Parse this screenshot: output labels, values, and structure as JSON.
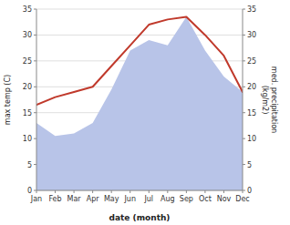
{
  "chart_data": {
    "type": "line",
    "xlabel": "date (month)",
    "ylabel": "max temp (C)",
    "y2label": "med. precipitation\n(kg/m2)",
    "categories": [
      "Jan",
      "Feb",
      "Mar",
      "Apr",
      "May",
      "Jun",
      "Jul",
      "Aug",
      "Sep",
      "Oct",
      "Nov",
      "Dec"
    ],
    "series": [
      {
        "type": "area",
        "axis": "y2",
        "color": "#b8c4e8",
        "values": [
          13.0,
          10.5,
          11.0,
          13.0,
          19.5,
          27.0,
          29.0,
          28.0,
          33.5,
          27.0,
          22.0,
          19.0
        ]
      },
      {
        "type": "line",
        "color": "#c0392b",
        "values": [
          16.5,
          18.0,
          19.0,
          20.0,
          24.0,
          28.0,
          32.0,
          33.0,
          33.5,
          30.0,
          26.0,
          19.0
        ]
      }
    ],
    "ylim": [
      0,
      35
    ],
    "yticks": [
      0,
      5,
      10,
      15,
      20,
      25,
      30,
      35
    ],
    "y2lim": [
      0,
      35
    ],
    "y2ticks": [
      0,
      5,
      10,
      15,
      20,
      25,
      30,
      35
    ],
    "grid": true
  }
}
